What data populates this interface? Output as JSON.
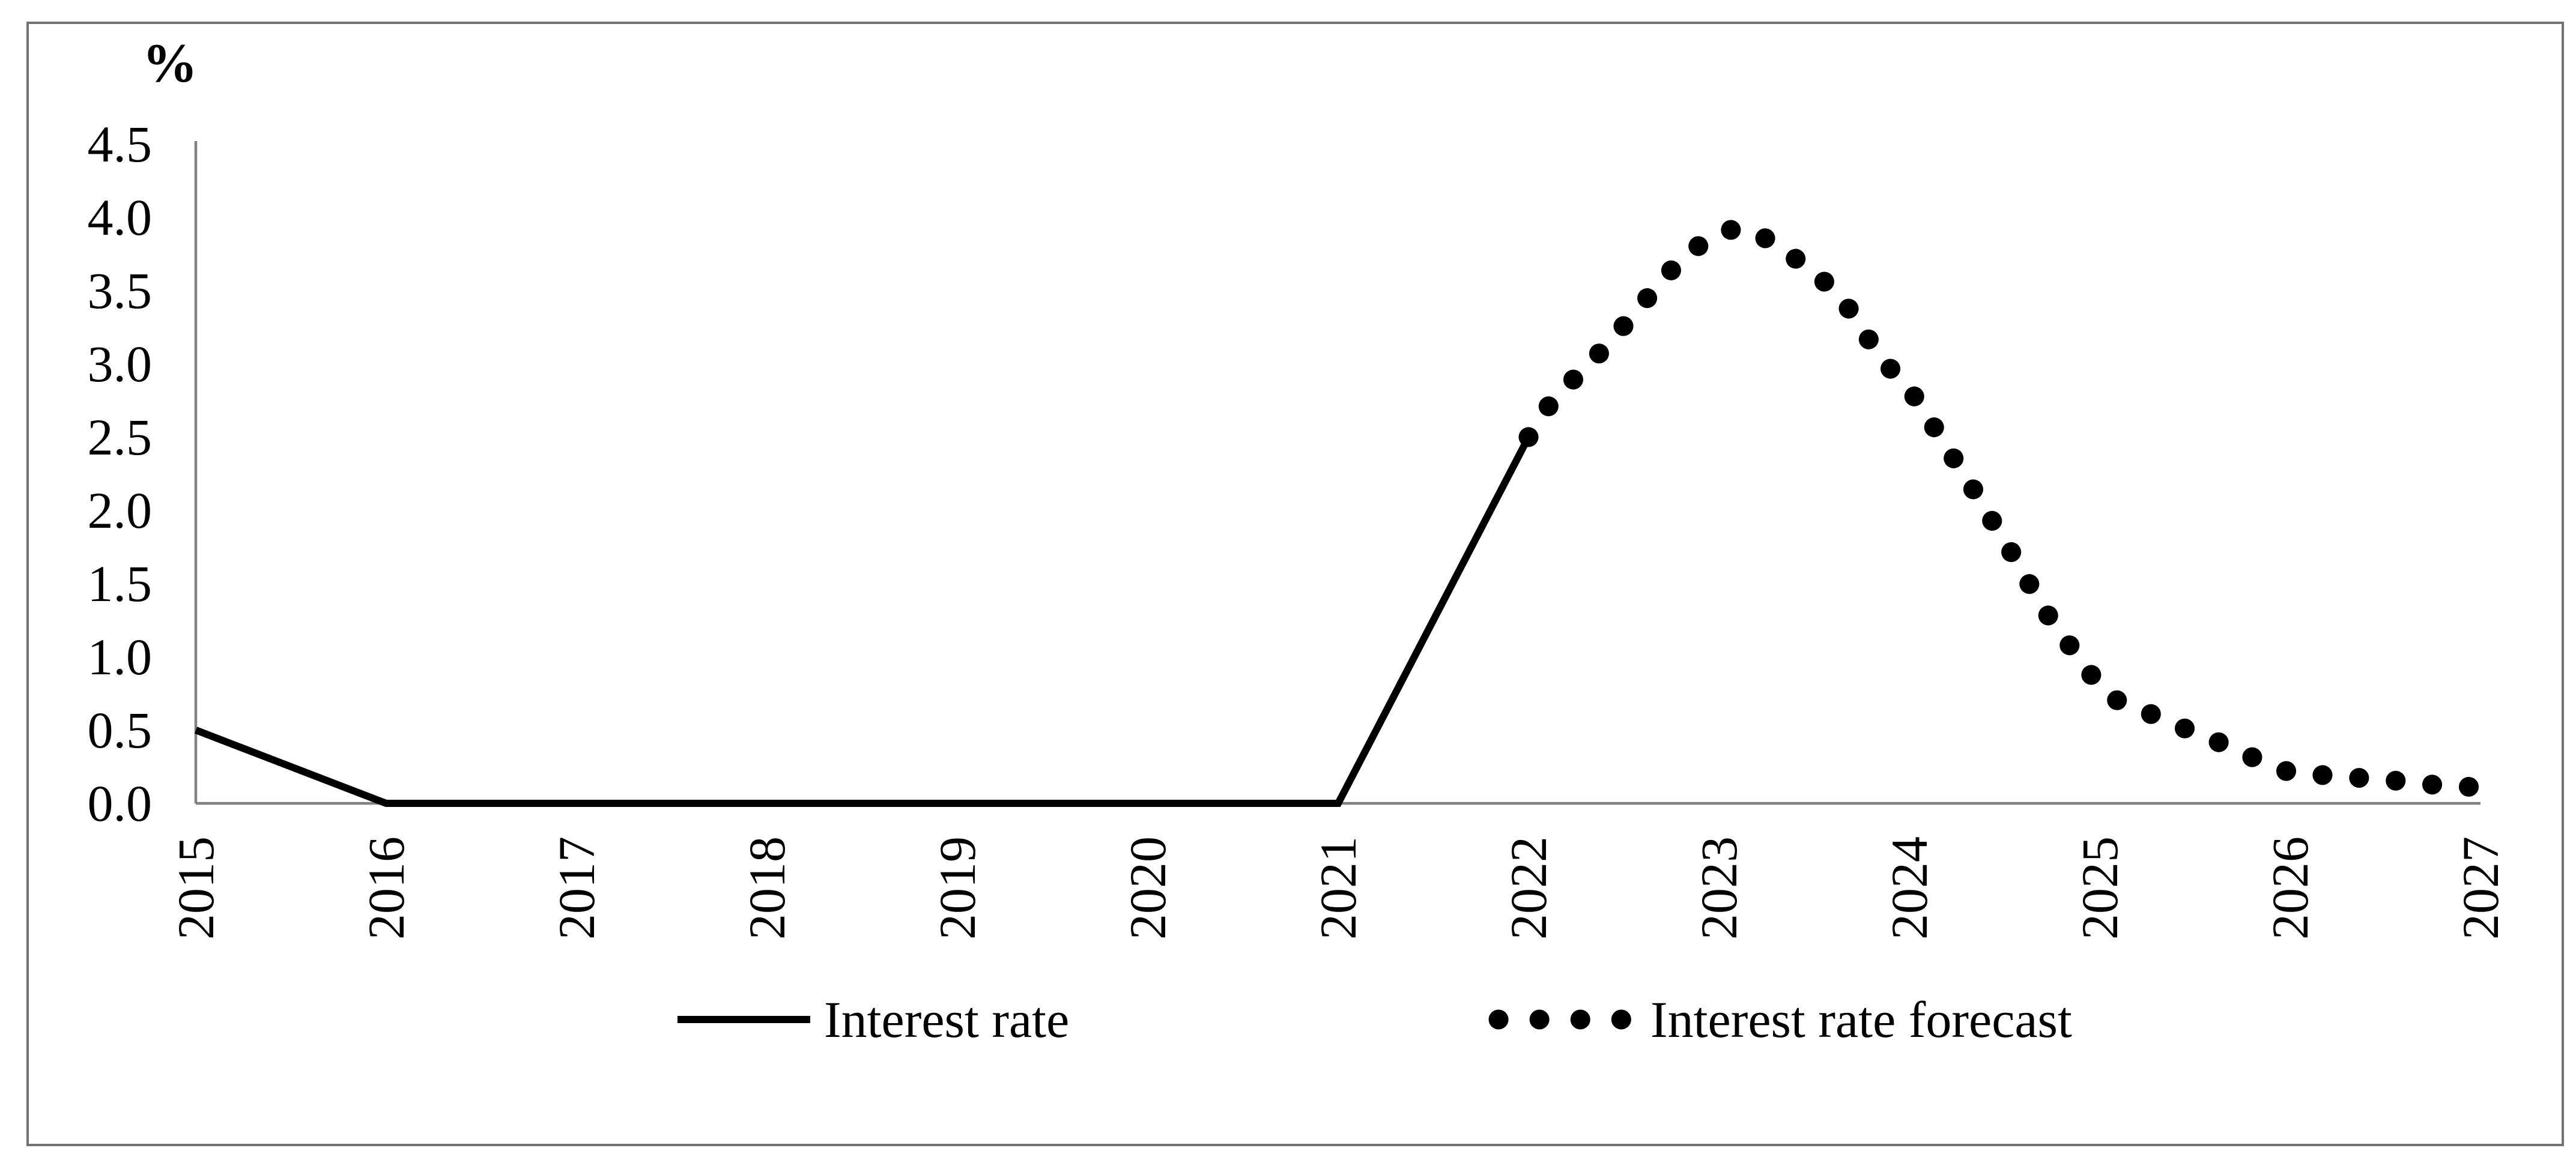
{
  "figure": {
    "y_axis_unit": "%"
  },
  "legend": {
    "interest_rate": "Interest rate",
    "forecast": "Interest rate forecast"
  },
  "colors": {
    "series": "#000000",
    "axis": "#808080",
    "frame_border": "#737373",
    "background": "#ffffff"
  },
  "chart_data": {
    "type": "line",
    "title": "",
    "xlabel": "",
    "ylabel": "%",
    "ylim": [
      0,
      4.5
    ],
    "y_tick_step": 0.5,
    "x_range": [
      2015,
      2027
    ],
    "grid": false,
    "legend_position": "bottom-center",
    "y_ticks": [
      "4.5",
      "4.0",
      "3.5",
      "3.0",
      "2.5",
      "2.0",
      "1.5",
      "1.0",
      "0.5",
      "0.0"
    ],
    "x_ticks": [
      "2015",
      "2016",
      "2017",
      "2018",
      "2019",
      "2020",
      "2021",
      "2022",
      "2023",
      "2024",
      "2025",
      "2026",
      "2027"
    ],
    "series": [
      {
        "name": "Interest rate",
        "style": "solid",
        "x": [
          2015,
          2016,
          2017,
          2018,
          2019,
          2020,
          2021,
          2022
        ],
        "values": [
          0.5,
          0.0,
          0.0,
          0.0,
          0.0,
          0.0,
          0.0,
          2.5
        ]
      },
      {
        "name": "Interest rate forecast",
        "style": "dotted",
        "x": [
          2022.0,
          2022.14,
          2022.3,
          2022.44,
          2022.58,
          2022.7,
          2022.83,
          2022.98,
          2023.1,
          2023.24,
          2023.38,
          2023.52,
          2023.64,
          2023.75,
          2023.86,
          2023.99,
          2024.1,
          2024.2,
          2024.31,
          2024.41,
          2024.52,
          2024.62,
          2024.72,
          2024.83,
          2024.94,
          2025.06,
          2025.25,
          2025.43,
          2025.62,
          2025.81,
          2026.0,
          2026.2,
          2026.4,
          2026.6,
          2026.8,
          2027.0
        ],
        "values": [
          2.5,
          2.78,
          2.97,
          3.17,
          3.38,
          3.57,
          3.75,
          3.88,
          3.93,
          3.86,
          3.74,
          3.6,
          3.46,
          3.24,
          3.02,
          2.85,
          2.63,
          2.42,
          2.2,
          1.98,
          1.75,
          1.52,
          1.3,
          1.1,
          0.9,
          0.72,
          0.62,
          0.52,
          0.42,
          0.31,
          0.21,
          0.19,
          0.17,
          0.15,
          0.12,
          0.11
        ]
      }
    ]
  }
}
